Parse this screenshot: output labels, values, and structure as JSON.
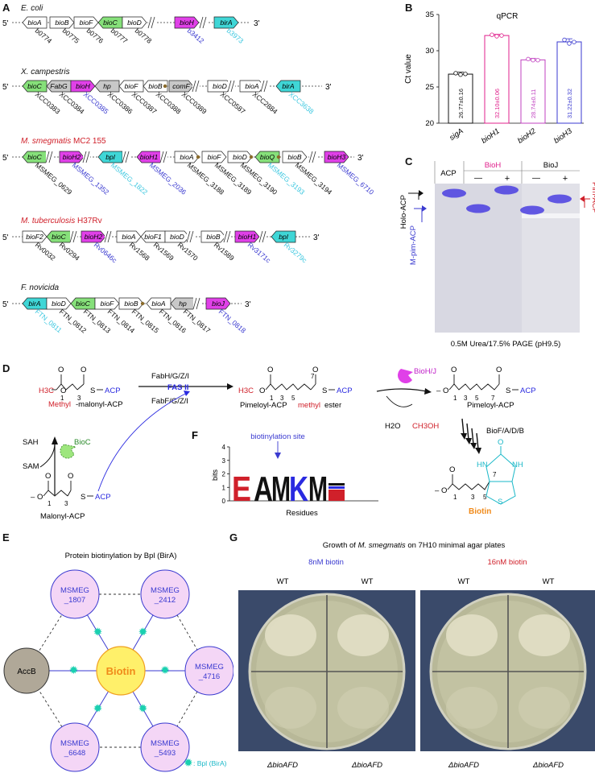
{
  "panels": {
    "A": "A",
    "B": "B",
    "C": "C",
    "D": "D",
    "E": "E",
    "F": "F",
    "G": "G"
  },
  "panelA": {
    "five_prime": "5'",
    "three_prime": "3'",
    "organisms": [
      {
        "name": "E. coli",
        "strain": "",
        "color": "black",
        "genes": [
          "bioA",
          "bioB",
          "bioF",
          "bioC",
          "bioD",
          "bioH",
          "birA"
        ],
        "loci": [
          "b0774",
          "b0775",
          "b0776",
          "b0777",
          "b0778",
          "b3412",
          "b3973"
        ]
      },
      {
        "name": "X. campestris",
        "strain": "",
        "color": "black",
        "genes": [
          "bioC",
          "FabG",
          "bioH",
          "hp",
          "bioF",
          "bioB",
          "comF",
          "bioD",
          "bioA",
          "birA"
        ],
        "loci": [
          "XCC0383",
          "XCC0384",
          "XCC0385",
          "XCC0386",
          "XCC0387",
          "XCC0388",
          "XCC0389",
          "XCC0587",
          "XCC2884",
          "XCC3638"
        ]
      },
      {
        "name": "M. smegmatis",
        "strain": "MC2 155",
        "color": "red",
        "genes": [
          "bioC",
          "bioH2",
          "bpl",
          "bioH1",
          "bioA",
          "bioF",
          "bioD",
          "bioQ",
          "bioB",
          "bioH3"
        ],
        "loci": [
          "MSMEG_0629",
          "MSMEG_1352",
          "MSMEG_1822",
          "MSMEG_2036",
          "MSMEG_3188",
          "MSMEG_3189",
          "MSMEG_3190",
          "MSMEG_3193",
          "MSMEG_3194",
          "MSMEG_6710"
        ]
      },
      {
        "name": "M. tuberculosis",
        "strain": "H37Rv",
        "color": "red",
        "genes": [
          "bioF2",
          "bioC",
          "bioH2",
          "bioA",
          "bioF1",
          "bioD",
          "bioB",
          "bioH1",
          "bpl"
        ],
        "loci": [
          "Rv0032",
          "Rv0294",
          "Rv0646c",
          "Rv1568",
          "Rv1569",
          "Rv1570",
          "Rv1589",
          "Rv3171c",
          "Rv3279c"
        ]
      },
      {
        "name": "F. novicida",
        "strain": "",
        "color": "black",
        "genes": [
          "birA",
          "bioD",
          "bioC",
          "bioF",
          "bioB",
          "bioA",
          "hp",
          "bioJ"
        ],
        "loci": [
          "FTN_0811",
          "FTN_0812",
          "FTN_0813",
          "FTN_0814",
          "FTN_0815",
          "FTN_0816",
          "FTN_0817",
          "FTN_0818"
        ]
      }
    ]
  },
  "chart_data": {
    "type": "bar",
    "title": "qPCR",
    "xlabel": "",
    "ylabel": "Ct value",
    "categories": [
      "sigA",
      "bioH1",
      "bioH2",
      "bioH3"
    ],
    "values": [
      26.77,
      32.1,
      28.74,
      31.22
    ],
    "errors": [
      0.16,
      0.06,
      0.11,
      0.32
    ],
    "value_labels": [
      "26.77±0.16",
      "32.10±0.06",
      "28.74±0.11",
      "31.22±0.32"
    ],
    "bar_colors": [
      "#111111",
      "#e0208c",
      "#c040c0",
      "#3a3ad0"
    ],
    "ylim": [
      20,
      35
    ],
    "yticks": [
      "20",
      "25",
      "30",
      "35"
    ],
    "points": [
      [
        26.9,
        26.7,
        26.8
      ],
      [
        32.2,
        32.0,
        32.1
      ],
      [
        28.85,
        28.7,
        28.7
      ],
      [
        31.5,
        31.0,
        31.2
      ]
    ],
    "grid": false
  },
  "panelC": {
    "acp": "ACP",
    "bioh": "BioH",
    "bioj": "BioJ",
    "minus": "—",
    "plus": "+",
    "holo": "Holo-ACP",
    "mpim": "M-pim-ACP",
    "pim": "Pim-ACP",
    "caption": "0.5M Urea/17.5% PAGE (pH9.5)"
  },
  "panelD": {
    "methyl_malonyl": "-malonyl-ACP",
    "methyl_word": "Methyl",
    "fabh": "FabH/G/Z/I",
    "fas2": "FAS II",
    "fabf": "FabF/G/Z/I",
    "pimeloyl_methyl_pre": "Pimeloyl-ACP ",
    "pimeloyl_methyl_word": "methyl",
    "pimeloyl_methyl_post": " ester",
    "bioHJ": "BioH/J",
    "h2o": "H2O",
    "ch3oh": "CH3OH",
    "pimeloyl_acp": "Pimeloyl-ACP",
    "sah": "SAH",
    "sam": "SAM",
    "bioc": "BioC",
    "malonyl": "Malonyl-ACP",
    "biofadb": "BioF/A/D/B",
    "biotin": "Biotin",
    "acp": "ACP",
    "s": "S",
    "h3c": "H3C",
    "o": "O",
    "hn": "HN",
    "nh": "NH",
    "num1": "1",
    "num3": "3",
    "num5": "5",
    "num7": "7"
  },
  "panelF": {
    "site": "biotinylation site",
    "ylabel": "bits",
    "xlabel": "Residues",
    "yticks": [
      "0",
      "1",
      "2",
      "3",
      "4"
    ],
    "motif": [
      "E",
      "A",
      "M",
      "K",
      "M"
    ]
  },
  "panelE": {
    "title": "Protein biotinylation by Bpl (BirA)",
    "center": "Biotin",
    "acc": "AccB",
    "nodes": [
      "MSMEG_1807",
      "MSMEG_2412",
      "MSMEG_4716",
      "MSMEG_5493",
      "MSMEG_6648"
    ],
    "legend": ": Bpl (BirA)"
  },
  "panelG": {
    "title_pre": "Growth of ",
    "title_org": "M. smegmatis",
    "title_post": " on 7H10 minimal agar plates",
    "cond1": "8nM biotin",
    "cond2": "16nM biotin",
    "wt": "WT",
    "mutant": "ΔbioAFD"
  }
}
